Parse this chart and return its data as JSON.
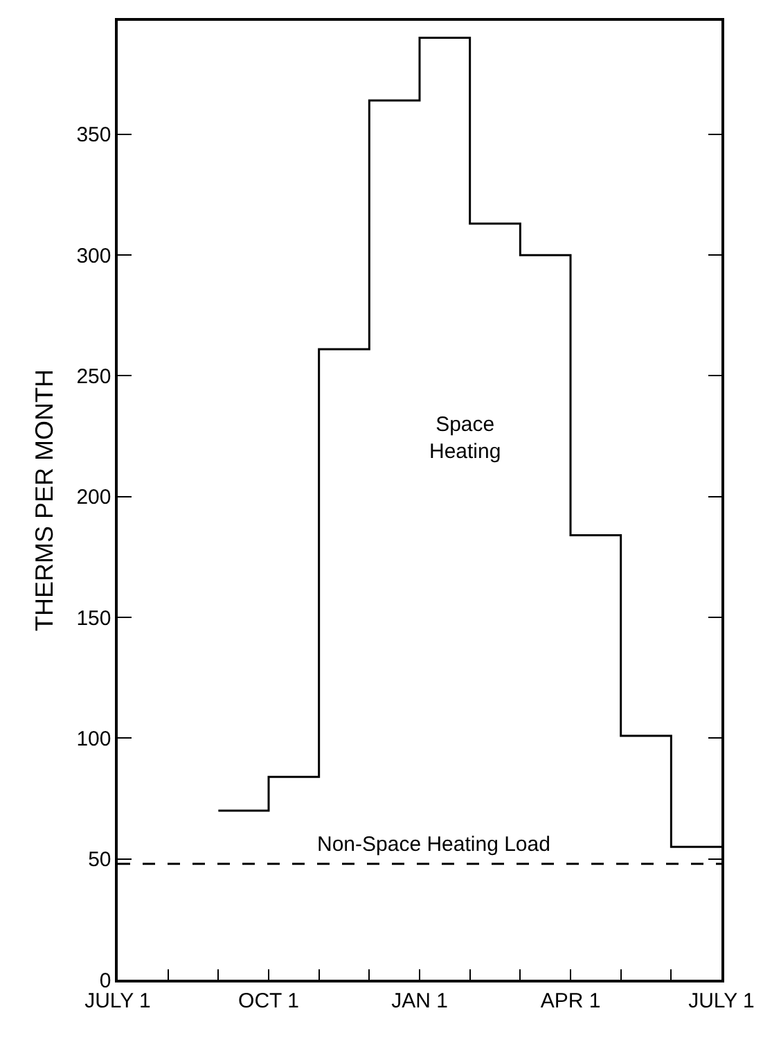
{
  "chart_data": {
    "type": "step",
    "ylabel": "THERMS PER MONTH",
    "categories": [
      "JULY 1",
      null,
      null,
      "OCT 1",
      null,
      null,
      "JAN 1",
      null,
      null,
      "APR 1",
      null,
      null,
      "JULY 1"
    ],
    "series": [
      {
        "color": "#000000",
        "line_style": "solid",
        "values": [
          null,
          null,
          70,
          84,
          261,
          364,
          390,
          313,
          300,
          184,
          101,
          55,
          55
        ]
      }
    ],
    "ylim": [
      0,
      397
    ],
    "yticks": [
      0,
      50,
      100,
      150,
      200,
      250,
      300,
      350
    ],
    "ref_lines": [
      {
        "axis": "y",
        "value": 48,
        "label": "Non-Space Heating Load",
        "color": "#000000",
        "line_style": "dashed"
      }
    ],
    "annotations": [
      "Space\nHeating"
    ],
    "grid": false,
    "legend": false,
    "marker": "none"
  }
}
